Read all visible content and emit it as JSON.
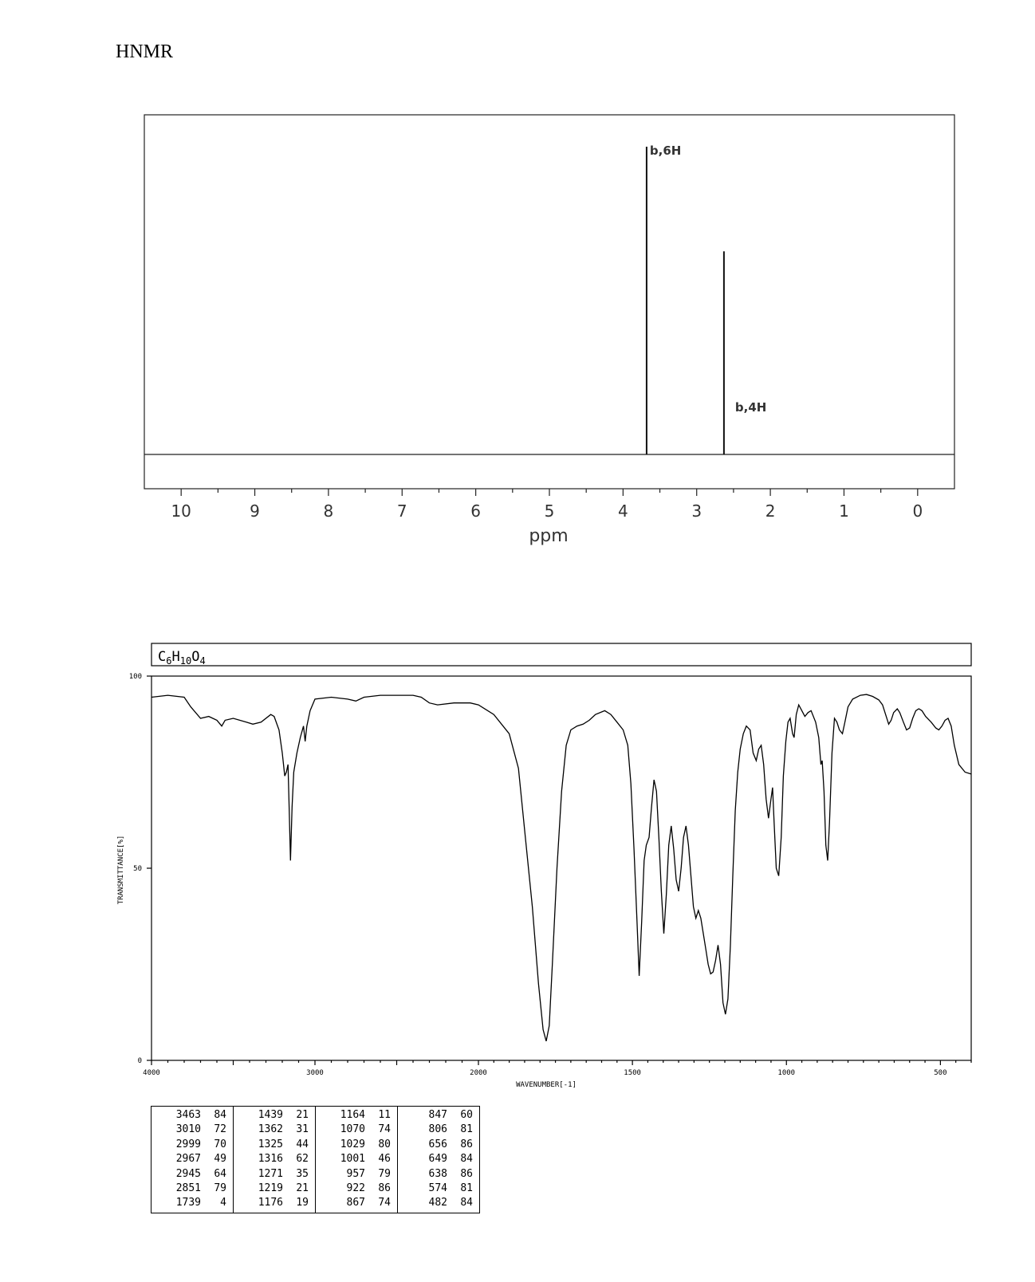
{
  "heading": "HNMR",
  "chart_data": [
    {
      "type": "line",
      "kind": "NMR stick spectrum",
      "xlabel": "ppm",
      "xlim": [
        10.5,
        -0.5
      ],
      "x_reversed": true,
      "ticks": [
        "10",
        "9",
        "8",
        "7",
        "6",
        "5",
        "4",
        "3",
        "2",
        "1",
        "0"
      ],
      "peaks": [
        {
          "ppm": 3.68,
          "relative_height": 1.0,
          "label": "b,6H"
        },
        {
          "ppm": 2.63,
          "relative_height": 0.66,
          "label": "b,4H"
        }
      ]
    },
    {
      "type": "line",
      "kind": "IR spectrum",
      "formula_parts": [
        "C",
        "6",
        "H",
        "10",
        "O",
        "4"
      ],
      "xlabel": "WAVENUMBER[-1]",
      "ylabel": "TRANSMITTANCE[%]",
      "ylim": [
        0,
        100
      ],
      "y_ticks": [
        "100",
        "50",
        "0"
      ],
      "x_ticks": [
        "4000",
        "3000",
        "2000",
        "1500",
        "1000",
        "500"
      ],
      "series": [
        {
          "points": [
            [
              4000,
              94.5
            ],
            [
              3900,
              95
            ],
            [
              3800,
              94.5
            ],
            [
              3760,
              92
            ],
            [
              3700,
              89
            ],
            [
              3650,
              89.5
            ],
            [
              3600,
              88.5
            ],
            [
              3570,
              87
            ],
            [
              3550,
              88.5
            ],
            [
              3500,
              89
            ],
            [
              3420,
              88
            ],
            [
              3380,
              87.5
            ],
            [
              3330,
              88
            ],
            [
              3270,
              90
            ],
            [
              3250,
              89.5
            ],
            [
              3220,
              86
            ],
            [
              3200,
              80
            ],
            [
              3185,
              74
            ],
            [
              3175,
              75
            ],
            [
              3165,
              77
            ],
            [
              3158,
              66
            ],
            [
              3150,
              52
            ],
            [
              3140,
              66
            ],
            [
              3130,
              75
            ],
            [
              3110,
              80
            ],
            [
              3090,
              84
            ],
            [
              3070,
              87
            ],
            [
              3060,
              83
            ],
            [
              3050,
              87
            ],
            [
              3030,
              91
            ],
            [
              3000,
              94
            ],
            [
              2900,
              94.5
            ],
            [
              2800,
              94
            ],
            [
              2750,
              93.5
            ],
            [
              2700,
              94.5
            ],
            [
              2600,
              95
            ],
            [
              2500,
              95
            ],
            [
              2400,
              95
            ],
            [
              2350,
              94.5
            ],
            [
              2300,
              93
            ],
            [
              2250,
              92.5
            ],
            [
              2150,
              93
            ],
            [
              2050,
              93
            ],
            [
              2000,
              92.5
            ],
            [
              1950,
              90
            ],
            [
              1900,
              85
            ],
            [
              1870,
              76
            ],
            [
              1850,
              60
            ],
            [
              1825,
              40
            ],
            [
              1805,
              20
            ],
            [
              1790,
              8
            ],
            [
              1780,
              5
            ],
            [
              1770,
              9
            ],
            [
              1760,
              25
            ],
            [
              1745,
              50
            ],
            [
              1730,
              70
            ],
            [
              1715,
              82
            ],
            [
              1700,
              86
            ],
            [
              1680,
              87
            ],
            [
              1660,
              87.5
            ],
            [
              1640,
              88.5
            ],
            [
              1620,
              90
            ],
            [
              1590,
              91
            ],
            [
              1570,
              90
            ],
            [
              1550,
              88
            ],
            [
              1530,
              86
            ],
            [
              1515,
              82
            ],
            [
              1505,
              72
            ],
            [
              1495,
              55
            ],
            [
              1485,
              36
            ],
            [
              1478,
              22
            ],
            [
              1470,
              36
            ],
            [
              1462,
              52
            ],
            [
              1455,
              56
            ],
            [
              1446,
              58
            ],
            [
              1438,
              66
            ],
            [
              1430,
              73
            ],
            [
              1422,
              70
            ],
            [
              1414,
              58
            ],
            [
              1406,
              44
            ],
            [
              1398,
              33
            ],
            [
              1390,
              43
            ],
            [
              1382,
              56
            ],
            [
              1374,
              61
            ],
            [
              1366,
              55
            ],
            [
              1358,
              47
            ],
            [
              1350,
              44
            ],
            [
              1342,
              50
            ],
            [
              1334,
              58
            ],
            [
              1326,
              61
            ],
            [
              1318,
              56
            ],
            [
              1310,
              48
            ],
            [
              1302,
              40
            ],
            [
              1294,
              37
            ],
            [
              1286,
              39
            ],
            [
              1278,
              37
            ],
            [
              1270,
              33
            ],
            [
              1262,
              29
            ],
            [
              1254,
              25
            ],
            [
              1246,
              22.5
            ],
            [
              1238,
              23
            ],
            [
              1230,
              26
            ],
            [
              1222,
              30
            ],
            [
              1214,
              25
            ],
            [
              1206,
              15
            ],
            [
              1198,
              12
            ],
            [
              1190,
              16
            ],
            [
              1182,
              30
            ],
            [
              1174,
              48
            ],
            [
              1166,
              65
            ],
            [
              1158,
              75
            ],
            [
              1150,
              81
            ],
            [
              1140,
              85
            ],
            [
              1130,
              87
            ],
            [
              1118,
              86
            ],
            [
              1108,
              80
            ],
            [
              1098,
              78
            ],
            [
              1090,
              81
            ],
            [
              1082,
              82
            ],
            [
              1074,
              77
            ],
            [
              1066,
              68
            ],
            [
              1058,
              63
            ],
            [
              1050,
              68
            ],
            [
              1045,
              71
            ],
            [
              1040,
              62
            ],
            [
              1033,
              50
            ],
            [
              1025,
              48
            ],
            [
              1017,
              58
            ],
            [
              1010,
              74
            ],
            [
              1002,
              83
            ],
            [
              995,
              88
            ],
            [
              988,
              89
            ],
            [
              980,
              85
            ],
            [
              975,
              84
            ],
            [
              968,
              90
            ],
            [
              960,
              92.5
            ],
            [
              950,
              91
            ],
            [
              940,
              89.5
            ],
            [
              930,
              90.5
            ],
            [
              920,
              91
            ],
            [
              905,
              88
            ],
            [
              895,
              84
            ],
            [
              888,
              77
            ],
            [
              884,
              78
            ],
            [
              878,
              70
            ],
            [
              872,
              56
            ],
            [
              866,
              52
            ],
            [
              860,
              62
            ],
            [
              852,
              80
            ],
            [
              844,
              89
            ],
            [
              836,
              88
            ],
            [
              828,
              86
            ],
            [
              818,
              85
            ],
            [
              810,
              88
            ],
            [
              800,
              92
            ],
            [
              785,
              94
            ],
            [
              760,
              95
            ],
            [
              740,
              95.2
            ],
            [
              720,
              94.7
            ],
            [
              700,
              93.8
            ],
            [
              688,
              92.5
            ],
            [
              676,
              89.5
            ],
            [
              668,
              87.5
            ],
            [
              660,
              88.5
            ],
            [
              652,
              90.5
            ],
            [
              640,
              91.5
            ],
            [
              632,
              90.5
            ],
            [
              620,
              88
            ],
            [
              610,
              86
            ],
            [
              600,
              86.5
            ],
            [
              590,
              89
            ],
            [
              580,
              91
            ],
            [
              570,
              91.5
            ],
            [
              560,
              91
            ],
            [
              548,
              89.5
            ],
            [
              530,
              88
            ],
            [
              515,
              86.5
            ],
            [
              505,
              86
            ],
            [
              495,
              87
            ],
            [
              485,
              88.5
            ],
            [
              475,
              89
            ],
            [
              465,
              87
            ],
            [
              455,
              82
            ],
            [
              440,
              77
            ],
            [
              420,
              75
            ],
            [
              400,
              74.5
            ]
          ]
        }
      ],
      "peak_table": [
        [
          [
            3463,
            84
          ],
          [
            3010,
            72
          ],
          [
            2999,
            70
          ],
          [
            2967,
            49
          ],
          [
            2945,
            64
          ],
          [
            2851,
            79
          ],
          [
            1739,
            4
          ]
        ],
        [
          [
            1439,
            21
          ],
          [
            1362,
            31
          ],
          [
            1325,
            44
          ],
          [
            1316,
            62
          ],
          [
            1271,
            35
          ],
          [
            1219,
            21
          ],
          [
            1176,
            19
          ]
        ],
        [
          [
            1164,
            11
          ],
          [
            1070,
            74
          ],
          [
            1029,
            80
          ],
          [
            1001,
            46
          ],
          [
            957,
            79
          ],
          [
            922,
            86
          ],
          [
            867,
            74
          ]
        ],
        [
          [
            847,
            60
          ],
          [
            806,
            81
          ],
          [
            656,
            86
          ],
          [
            649,
            84
          ],
          [
            638,
            86
          ],
          [
            574,
            81
          ],
          [
            482,
            84
          ]
        ]
      ]
    }
  ]
}
